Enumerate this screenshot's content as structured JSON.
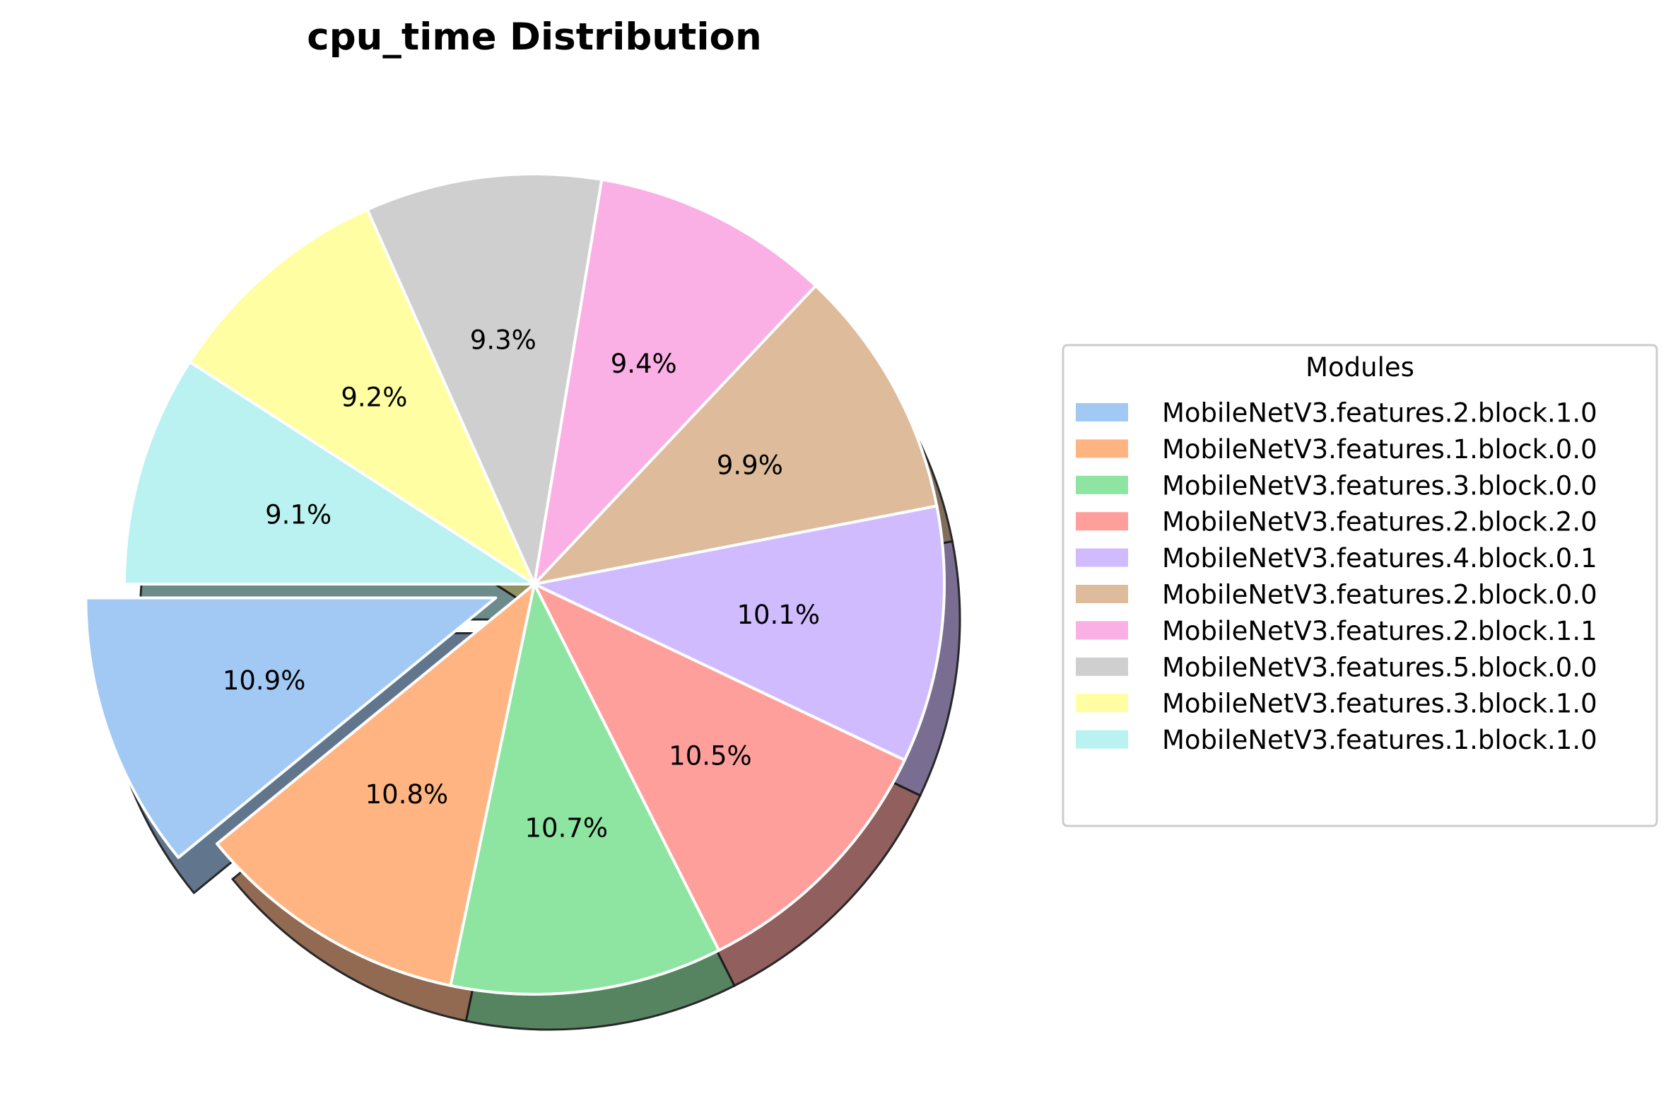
{
  "chart_data": {
    "type": "pie",
    "title": "cpu_time Distribution",
    "legend_title": "Modules",
    "legend_position": "right",
    "start_angle_deg": 180,
    "direction": "counterclockwise",
    "exploded_slice_index": 0,
    "shadow": true,
    "slices": [
      {
        "label": "MobileNetV3.features.2.block.1.0",
        "value": 10.9,
        "pct_label": "10.9%",
        "color": "#a1c9f4"
      },
      {
        "label": "MobileNetV3.features.1.block.0.0",
        "value": 10.8,
        "pct_label": "10.8%",
        "color": "#ffb482"
      },
      {
        "label": "MobileNetV3.features.3.block.0.0",
        "value": 10.7,
        "pct_label": "10.7%",
        "color": "#8de5a1"
      },
      {
        "label": "MobileNetV3.features.2.block.2.0",
        "value": 10.5,
        "pct_label": "10.5%",
        "color": "#ff9f9b"
      },
      {
        "label": "MobileNetV3.features.4.block.0.1",
        "value": 10.1,
        "pct_label": "10.1%",
        "color": "#d0bbff"
      },
      {
        "label": "MobileNetV3.features.2.block.0.0",
        "value": 9.9,
        "pct_label": "9.9%",
        "color": "#debb9b"
      },
      {
        "label": "MobileNetV3.features.2.block.1.1",
        "value": 9.4,
        "pct_label": "9.4%",
        "color": "#fab0e4"
      },
      {
        "label": "MobileNetV3.features.5.block.0.0",
        "value": 9.3,
        "pct_label": "9.3%",
        "color": "#cfcfcf"
      },
      {
        "label": "MobileNetV3.features.3.block.1.0",
        "value": 9.2,
        "pct_label": "9.2%",
        "color": "#fffea3"
      },
      {
        "label": "MobileNetV3.features.1.block.1.0",
        "value": 9.1,
        "pct_label": "9.1%",
        "color": "#b9f2f0"
      }
    ]
  }
}
